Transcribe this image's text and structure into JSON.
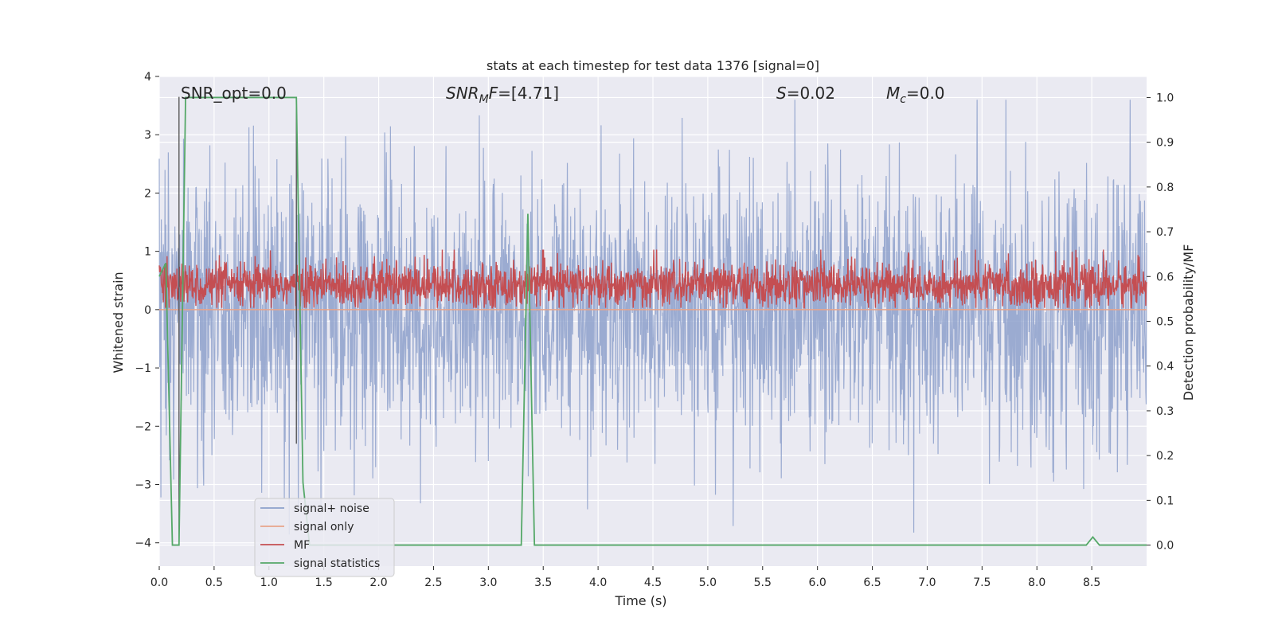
{
  "chart_data": {
    "type": "line",
    "title": "stats at each timestep for test data 1376 [signal=0]",
    "xlabel": "Time (s)",
    "ylabel": "Whitened strain",
    "ylabel_right": "Detection probability/MF",
    "xlim": [
      0.0,
      9.0
    ],
    "ylim": [
      -4.4,
      4.0
    ],
    "ylim_right": [
      -0.047,
      1.047
    ],
    "x_ticks": [
      "0.0",
      "0.5",
      "1.0",
      "1.5",
      "2.0",
      "2.5",
      "3.0",
      "3.5",
      "4.0",
      "4.5",
      "5.0",
      "5.5",
      "6.0",
      "6.5",
      "7.0",
      "7.5",
      "8.0",
      "8.5"
    ],
    "y_ticks": [
      "−4",
      "−3",
      "−2",
      "−1",
      "0",
      "1",
      "2",
      "3",
      "4"
    ],
    "y_ticks_right": [
      "0.0",
      "0.1",
      "0.2",
      "0.3",
      "0.4",
      "0.5",
      "0.6",
      "0.7",
      "0.8",
      "0.9",
      "1.0"
    ],
    "grid": true,
    "legend_position": "lower-left",
    "annotations": {
      "snr_opt": "SNR_opt=0.0",
      "snr_mf_sym": "SNR",
      "snr_mf_sub": "M",
      "snr_mf_rest": "F=[4.71]",
      "s_sym": "S",
      "s_rest": "=0.02",
      "mc_sym": "M",
      "mc_sub": "c",
      "mc_rest": "=0.0"
    },
    "series": [
      {
        "name": "signal+ noise",
        "color": "#8da0cb",
        "axis": "left",
        "kind": "noise",
        "amplitude_std": 1.0,
        "x_range": [
          0.0,
          9.0
        ]
      },
      {
        "name": "signal only",
        "color": "#e8a48a",
        "axis": "left",
        "kind": "flat",
        "value": 0.0
      },
      {
        "name": "MF",
        "color": "#c44e52",
        "axis": "right",
        "kind": "noise",
        "mean": 0.58,
        "spread": 0.025
      },
      {
        "name": "signal statistics",
        "color": "#55a868",
        "axis": "right",
        "kind": "line",
        "x": [
          0.0,
          0.06,
          0.12,
          0.18,
          0.24,
          0.3,
          0.6,
          0.9,
          1.2,
          1.25,
          1.31,
          1.37,
          1.43,
          1.8,
          2.4,
          3.0,
          3.3,
          3.36,
          3.42,
          3.48,
          4.2,
          5.4,
          6.6,
          7.8,
          8.45,
          8.51,
          8.57,
          9.0
        ],
        "y": [
          0.6,
          0.63,
          0.0,
          0.0,
          1.0,
          1.0,
          1.0,
          1.0,
          1.0,
          1.0,
          0.14,
          0.0,
          0.0,
          0.0,
          0.0,
          0.0,
          0.0,
          0.74,
          0.0,
          0.0,
          0.0,
          0.0,
          0.0,
          0.0,
          0.0,
          0.018,
          0.0,
          0.0
        ]
      }
    ],
    "vlines": [
      {
        "x": 0.18,
        "y_from": -4.0,
        "y_to": 3.65,
        "color": "#4c4c4c"
      },
      {
        "x": 1.25,
        "y_from": -2.3,
        "y_to": 3.65,
        "color": "#4c4c4c"
      }
    ]
  }
}
